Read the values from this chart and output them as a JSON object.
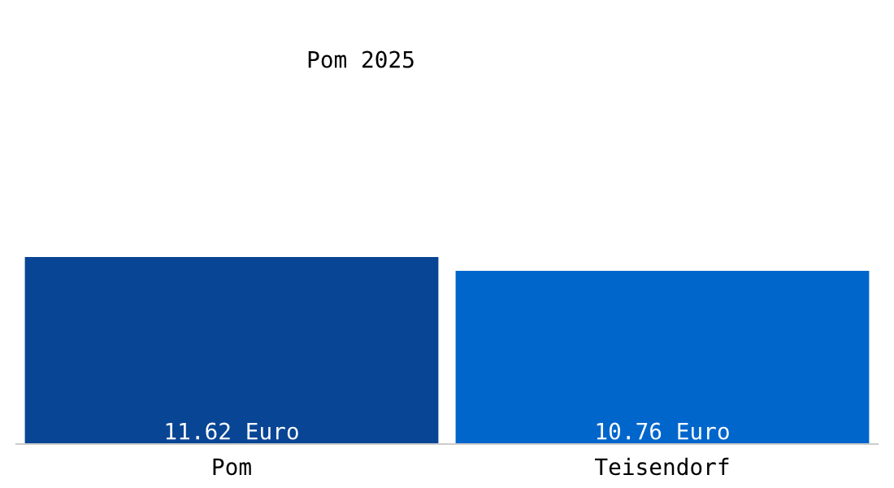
{
  "chart_data": {
    "type": "bar",
    "title": "Pom 2025",
    "categories": [
      "Pom",
      "Teisendorf"
    ],
    "values": [
      11.62,
      10.76
    ],
    "colors": [
      "#084594",
      "#0066cc"
    ],
    "value_labels": [
      "11.62 Euro",
      "10.76 Euro"
    ],
    "grid": false,
    "legend": false
  }
}
